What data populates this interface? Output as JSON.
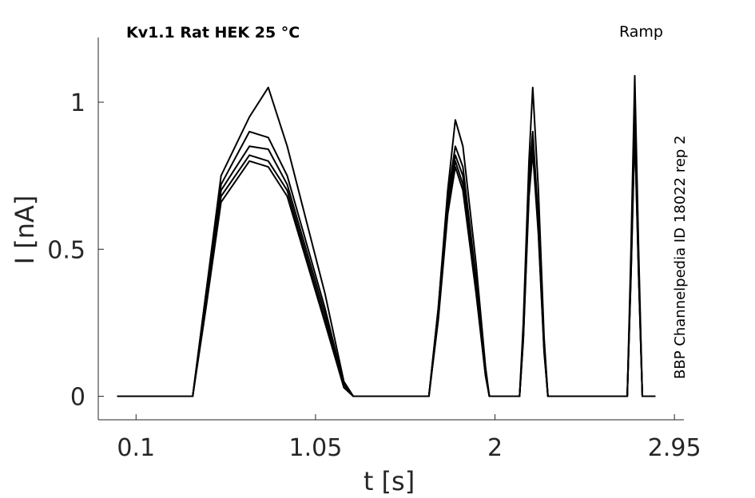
{
  "chart_data": {
    "type": "line",
    "title": "Kv1.1  Rat  HEK  25 °C",
    "protocol": "Ramp",
    "source": "BBP Channelpedia ID 18022 rep 2",
    "xlabel": "t [s]",
    "ylabel": "I [nA]",
    "xlim": [
      -0.1,
      3.0
    ],
    "ylim": [
      -0.08,
      1.22
    ],
    "x_ticks": [
      0.1,
      1.05,
      2,
      2.95
    ],
    "x_tick_labels": [
      "0.1",
      "1.05",
      "2",
      "2.95"
    ],
    "y_ticks": [
      0,
      0.5,
      1
    ],
    "y_tick_labels": [
      "0",
      "0.5",
      "1"
    ],
    "grid": false,
    "line_color": "#000000",
    "series": [
      {
        "values": [
          [
            0.0,
            0.0
          ],
          [
            0.4,
            0.0
          ],
          [
            0.47,
            0.35
          ],
          [
            0.55,
            0.75
          ],
          [
            0.7,
            0.95
          ],
          [
            0.8,
            1.05
          ],
          [
            0.9,
            0.85
          ],
          [
            1.1,
            0.35
          ],
          [
            1.2,
            0.05
          ],
          [
            1.25,
            0.0
          ],
          [
            1.65,
            0.0
          ],
          [
            1.7,
            0.3
          ],
          [
            1.75,
            0.7
          ],
          [
            1.79,
            0.94
          ],
          [
            1.83,
            0.85
          ],
          [
            1.9,
            0.45
          ],
          [
            1.95,
            0.1
          ],
          [
            1.97,
            0.0
          ],
          [
            2.13,
            0.0
          ],
          [
            2.15,
            0.25
          ],
          [
            2.18,
            0.8
          ],
          [
            2.2,
            1.05
          ],
          [
            2.23,
            0.7
          ],
          [
            2.26,
            0.2
          ],
          [
            2.28,
            0.0
          ],
          [
            2.7,
            0.0
          ],
          [
            2.72,
            0.5
          ],
          [
            2.74,
            1.09
          ],
          [
            2.76,
            0.5
          ],
          [
            2.78,
            0.0
          ],
          [
            2.85,
            0.0
          ]
        ]
      },
      {
        "values": [
          [
            0.0,
            0.0
          ],
          [
            0.4,
            0.0
          ],
          [
            0.47,
            0.35
          ],
          [
            0.55,
            0.72
          ],
          [
            0.7,
            0.9
          ],
          [
            0.8,
            0.88
          ],
          [
            0.9,
            0.75
          ],
          [
            1.1,
            0.3
          ],
          [
            1.2,
            0.04
          ],
          [
            1.25,
            0.0
          ],
          [
            1.65,
            0.0
          ],
          [
            1.7,
            0.3
          ],
          [
            1.75,
            0.68
          ],
          [
            1.79,
            0.85
          ],
          [
            1.83,
            0.78
          ],
          [
            1.9,
            0.4
          ],
          [
            1.95,
            0.08
          ],
          [
            1.97,
            0.0
          ],
          [
            2.13,
            0.0
          ],
          [
            2.15,
            0.22
          ],
          [
            2.18,
            0.75
          ],
          [
            2.2,
            0.9
          ],
          [
            2.23,
            0.6
          ],
          [
            2.26,
            0.18
          ],
          [
            2.28,
            0.0
          ],
          [
            2.7,
            0.0
          ],
          [
            2.72,
            0.45
          ],
          [
            2.74,
            1.0
          ],
          [
            2.76,
            0.45
          ],
          [
            2.78,
            0.0
          ],
          [
            2.85,
            0.0
          ]
        ]
      },
      {
        "values": [
          [
            0.0,
            0.0
          ],
          [
            0.4,
            0.0
          ],
          [
            0.47,
            0.33
          ],
          [
            0.55,
            0.7
          ],
          [
            0.7,
            0.85
          ],
          [
            0.8,
            0.84
          ],
          [
            0.9,
            0.72
          ],
          [
            1.1,
            0.28
          ],
          [
            1.2,
            0.04
          ],
          [
            1.25,
            0.0
          ],
          [
            1.65,
            0.0
          ],
          [
            1.7,
            0.28
          ],
          [
            1.75,
            0.65
          ],
          [
            1.79,
            0.82
          ],
          [
            1.83,
            0.75
          ],
          [
            1.9,
            0.38
          ],
          [
            1.95,
            0.08
          ],
          [
            1.97,
            0.0
          ],
          [
            2.13,
            0.0
          ],
          [
            2.15,
            0.2
          ],
          [
            2.18,
            0.72
          ],
          [
            2.2,
            0.87
          ],
          [
            2.23,
            0.58
          ],
          [
            2.26,
            0.17
          ],
          [
            2.28,
            0.0
          ],
          [
            2.7,
            0.0
          ],
          [
            2.72,
            0.43
          ],
          [
            2.74,
            0.96
          ],
          [
            2.76,
            0.43
          ],
          [
            2.78,
            0.0
          ],
          [
            2.85,
            0.0
          ]
        ]
      },
      {
        "values": [
          [
            0.0,
            0.0
          ],
          [
            0.4,
            0.0
          ],
          [
            0.47,
            0.32
          ],
          [
            0.55,
            0.68
          ],
          [
            0.7,
            0.82
          ],
          [
            0.8,
            0.8
          ],
          [
            0.9,
            0.7
          ],
          [
            1.1,
            0.26
          ],
          [
            1.2,
            0.03
          ],
          [
            1.25,
            0.0
          ],
          [
            1.65,
            0.0
          ],
          [
            1.7,
            0.27
          ],
          [
            1.75,
            0.63
          ],
          [
            1.79,
            0.8
          ],
          [
            1.83,
            0.72
          ],
          [
            1.9,
            0.36
          ],
          [
            1.95,
            0.07
          ],
          [
            1.97,
            0.0
          ],
          [
            2.13,
            0.0
          ],
          [
            2.15,
            0.2
          ],
          [
            2.18,
            0.7
          ],
          [
            2.2,
            0.85
          ],
          [
            2.23,
            0.56
          ],
          [
            2.26,
            0.16
          ],
          [
            2.28,
            0.0
          ],
          [
            2.7,
            0.0
          ],
          [
            2.72,
            0.42
          ],
          [
            2.74,
            0.92
          ],
          [
            2.76,
            0.42
          ],
          [
            2.78,
            0.0
          ],
          [
            2.85,
            0.0
          ]
        ]
      },
      {
        "values": [
          [
            0.0,
            0.0
          ],
          [
            0.4,
            0.0
          ],
          [
            0.47,
            0.3
          ],
          [
            0.55,
            0.66
          ],
          [
            0.7,
            0.8
          ],
          [
            0.8,
            0.78
          ],
          [
            0.9,
            0.68
          ],
          [
            1.1,
            0.25
          ],
          [
            1.2,
            0.03
          ],
          [
            1.25,
            0.0
          ],
          [
            1.65,
            0.0
          ],
          [
            1.7,
            0.26
          ],
          [
            1.75,
            0.62
          ],
          [
            1.79,
            0.78
          ],
          [
            1.83,
            0.7
          ],
          [
            1.9,
            0.35
          ],
          [
            1.95,
            0.07
          ],
          [
            1.97,
            0.0
          ],
          [
            2.13,
            0.0
          ],
          [
            2.15,
            0.19
          ],
          [
            2.18,
            0.68
          ],
          [
            2.2,
            0.83
          ],
          [
            2.23,
            0.55
          ],
          [
            2.26,
            0.15
          ],
          [
            2.28,
            0.0
          ],
          [
            2.7,
            0.0
          ],
          [
            2.72,
            0.41
          ],
          [
            2.74,
            0.9
          ],
          [
            2.76,
            0.41
          ],
          [
            2.78,
            0.0
          ],
          [
            2.85,
            0.0
          ]
        ]
      }
    ]
  }
}
